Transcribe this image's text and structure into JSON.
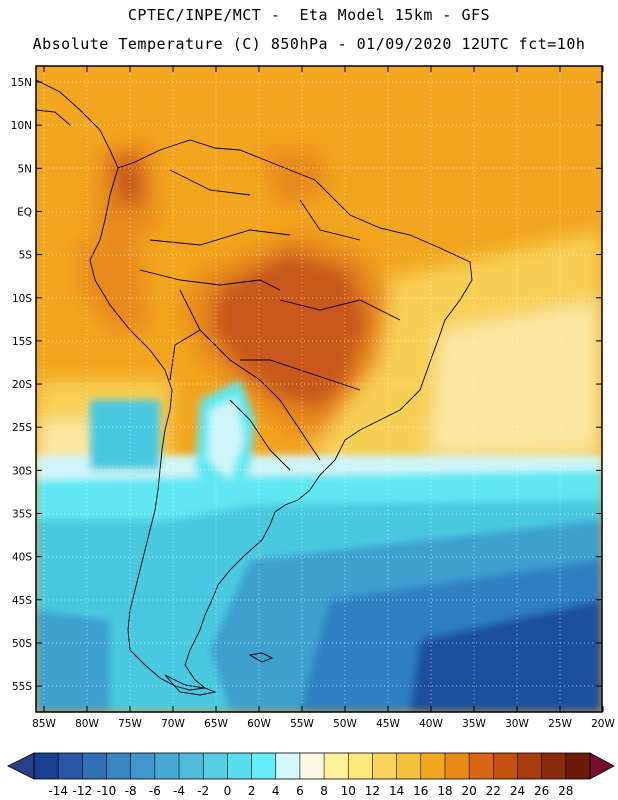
{
  "header": {
    "line1": "CPTEC/INPE/MCT -  Eta Model 15km - GFS",
    "line2": "Absolute Temperature (C) 850hPa - 01/09/2020 12UTC fct=10h"
  },
  "map": {
    "lat_labels": [
      "15N",
      "10N",
      "5N",
      "EQ",
      "5S",
      "10S",
      "15S",
      "20S",
      "25S",
      "30S",
      "35S",
      "40S",
      "45S",
      "50S",
      "55S"
    ],
    "lon_labels": [
      "85W",
      "80W",
      "75W",
      "70W",
      "65W",
      "60W",
      "55W",
      "50W",
      "45W",
      "40W",
      "35W",
      "30W",
      "25W",
      "20W"
    ],
    "colors": {
      "hot": "#c9591a",
      "warm": "#e88a1c",
      "orange": "#f2a51e",
      "yellow": "#f7cf52",
      "pale": "#fbe6a0",
      "cream": "#fff8e0",
      "cyan_light": "#cff4f8",
      "cyan": "#5ee8f2",
      "teal": "#4ac9e0",
      "blue_mid": "#3d9fd0",
      "blue": "#2f7fbf",
      "navy": "#1f4f9c",
      "coast": "#000000"
    }
  },
  "colorbar": {
    "labels": [
      "-14",
      "-12",
      "-10",
      "-8",
      "-6",
      "-4",
      "-2",
      "0",
      "2",
      "4",
      "6",
      "8",
      "10",
      "12",
      "14",
      "16",
      "18",
      "20",
      "22",
      "24",
      "26",
      "28"
    ],
    "colors": [
      "#1b3f8f",
      "#2a58a6",
      "#3070b5",
      "#3a86c3",
      "#4197cb",
      "#48a9d3",
      "#4fbcdc",
      "#56cde4",
      "#5bdbee",
      "#66eef8",
      "#d4f8fb",
      "#fff7e2",
      "#fff39a",
      "#fde67a",
      "#f8d45a",
      "#f3c13a",
      "#f0a820",
      "#e98a17",
      "#d96612",
      "#c4500f",
      "#a83c0c",
      "#8a2a0a",
      "#6b1b08"
    ],
    "under_color": "#2c3f8a",
    "over_color": "#7a0e2e"
  }
}
